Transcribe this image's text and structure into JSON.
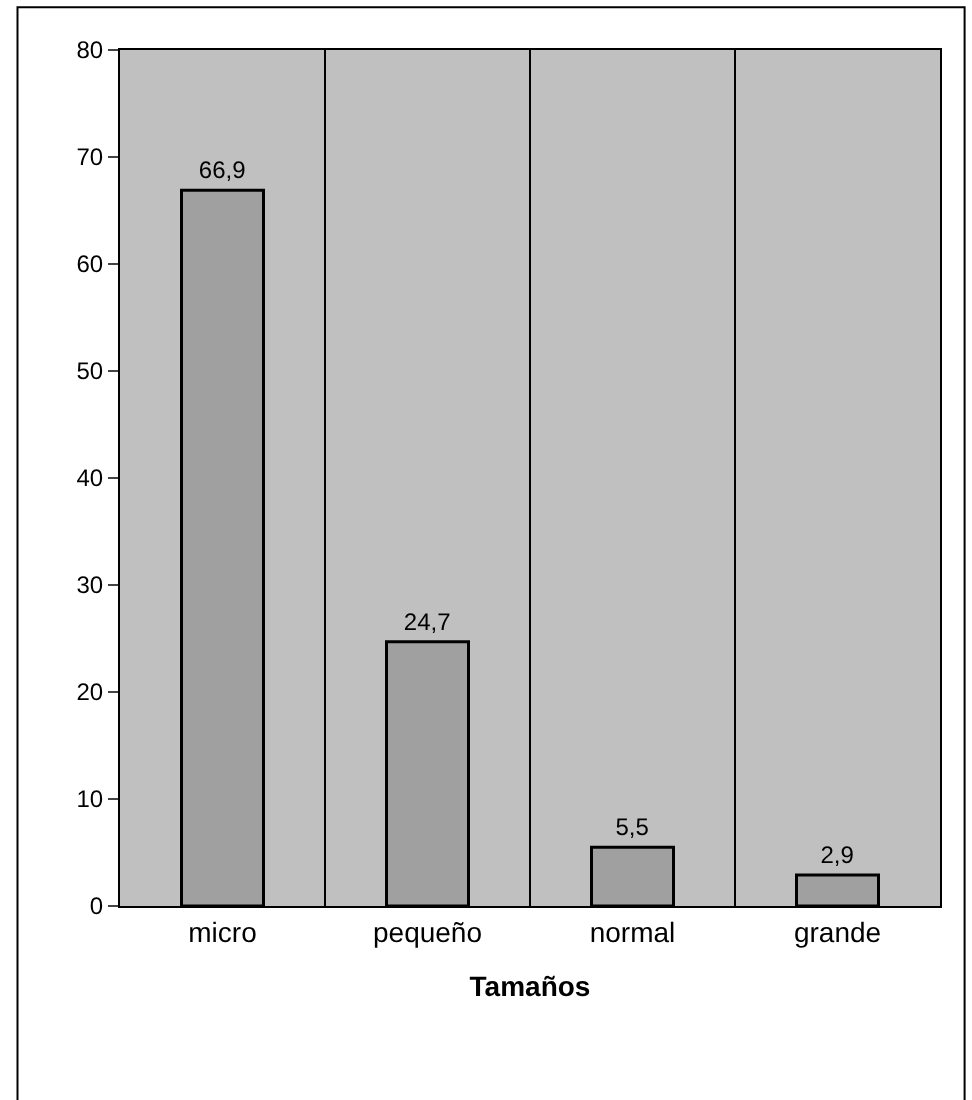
{
  "chart_data": {
    "type": "bar",
    "xlabel": "Tamaños",
    "categories": [
      "micro",
      "pequeño",
      "normal",
      "grande"
    ],
    "values": [
      66.9,
      24.7,
      5.5,
      2.9
    ],
    "value_labels": [
      "66,9",
      "24,7",
      "5,5",
      "2,9"
    ],
    "color": "#a0a0a0",
    "ylim": [
      0,
      80
    ],
    "yticks": [
      0,
      10,
      20,
      30,
      40,
      50,
      60,
      70,
      80
    ],
    "grid": "x",
    "legend": false
  }
}
